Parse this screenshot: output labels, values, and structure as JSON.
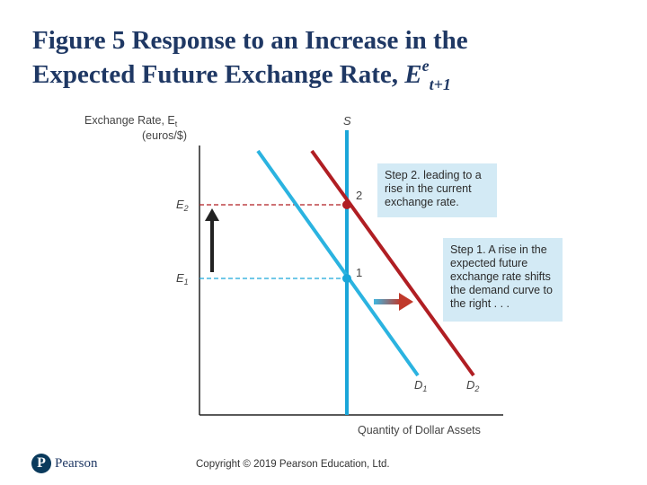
{
  "title": {
    "line1": "Figure 5 Response to an Increase in the",
    "line2_prefix": "Expected Future Exchange Rate, ",
    "symbol": "E",
    "sup": "e",
    "sub": "t+1"
  },
  "diagram": {
    "y_axis_label_1": "Exchange Rate, E",
    "y_axis_label_1_sub": "t",
    "y_axis_label_2": "(euros/$)",
    "x_axis_label": "Quantity of Dollar Assets",
    "e2_label": "E",
    "e2_sub": "2",
    "e1_label": "E",
    "e1_sub": "1",
    "supply_label": "S",
    "d1_label": "D",
    "d1_sub": "1",
    "d2_label": "D",
    "d2_sub": "2",
    "point1_label": "1",
    "point2_label": "2",
    "colors": {
      "supply": "#1aa6d9",
      "d1": "#2bb3e0",
      "d2": "#b01e23",
      "point1": "#1aa6d9",
      "point2": "#b01e23",
      "note_bg": "#d3eaf5"
    }
  },
  "notes": {
    "step2": "Step 2. leading to a rise in the current exchange rate.",
    "step1": "Step 1. A rise in the expected future exchange rate shifts the demand curve to the right . . ."
  },
  "footer": {
    "logo_mark": "P",
    "logo_text": "Pearson",
    "copyright": "Copyright © 2019 Pearson Education, Ltd."
  }
}
